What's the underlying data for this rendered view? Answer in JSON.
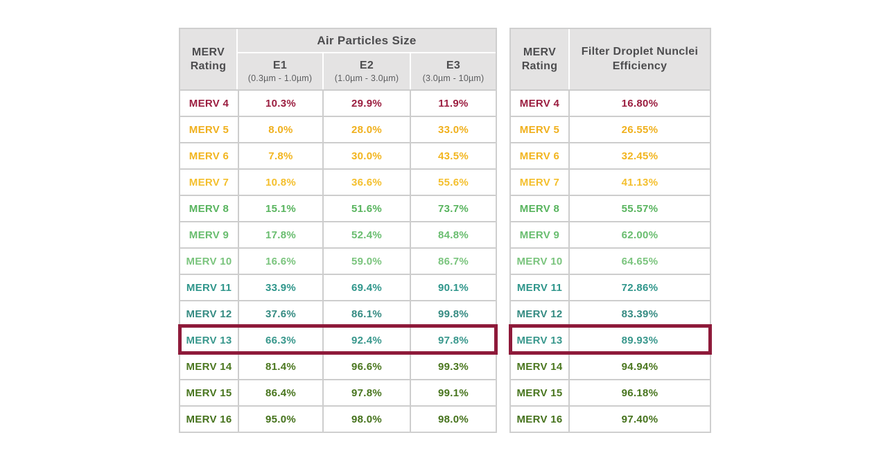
{
  "page": {
    "background": "#ffffff"
  },
  "colors": {
    "highlight_border": "#8e1a3a",
    "header_bg": "#e4e3e3",
    "header_text": "#4d4d4f",
    "grid_line": "#cdcdcd",
    "outer_border": "#cfcfcf"
  },
  "left_table": {
    "header": {
      "merv_label": "MERV Rating",
      "group_label": "Air Particles Size",
      "columns": [
        {
          "code": "E1",
          "range": "(0.3µm - 1.0µm)"
        },
        {
          "code": "E2",
          "range": "(1.0µm - 3.0µm)"
        },
        {
          "code": "E3",
          "range": "(3.0µm - 10µm)"
        }
      ]
    },
    "rows": [
      {
        "rating": "MERV 4",
        "values": [
          "10.3%",
          "29.9%",
          "11.9%"
        ],
        "color": "#9b1e40",
        "highlighted": false
      },
      {
        "rating": "MERV 5",
        "values": [
          "8.0%",
          "28.0%",
          "33.0%"
        ],
        "color": "#f0b01d",
        "highlighted": false
      },
      {
        "rating": "MERV 6",
        "values": [
          "7.8%",
          "30.0%",
          "43.5%"
        ],
        "color": "#f2b51f",
        "highlighted": false
      },
      {
        "rating": "MERV 7",
        "values": [
          "10.8%",
          "36.6%",
          "55.6%"
        ],
        "color": "#f4bf2d",
        "highlighted": false
      },
      {
        "rating": "MERV 8",
        "values": [
          "15.1%",
          "51.6%",
          "73.7%"
        ],
        "color": "#58b45e",
        "highlighted": false
      },
      {
        "rating": "MERV 9",
        "values": [
          "17.8%",
          "52.4%",
          "84.8%"
        ],
        "color": "#69bd6f",
        "highlighted": false
      },
      {
        "rating": "MERV 10",
        "values": [
          "16.6%",
          "59.0%",
          "86.7%"
        ],
        "color": "#7ac47d",
        "highlighted": false
      },
      {
        "rating": "MERV 11",
        "values": [
          "33.9%",
          "69.4%",
          "90.1%"
        ],
        "color": "#2f968b",
        "highlighted": false
      },
      {
        "rating": "MERV 12",
        "values": [
          "37.6%",
          "86.1%",
          "99.8%"
        ],
        "color": "#358b82",
        "highlighted": false
      },
      {
        "rating": "MERV 13",
        "values": [
          "66.3%",
          "92.4%",
          "97.8%"
        ],
        "color": "#38978c",
        "highlighted": true
      },
      {
        "rating": "MERV 14",
        "values": [
          "81.4%",
          "96.6%",
          "99.3%"
        ],
        "color": "#4b771f",
        "highlighted": false
      },
      {
        "rating": "MERV 15",
        "values": [
          "86.4%",
          "97.8%",
          "99.1%"
        ],
        "color": "#48751e",
        "highlighted": false
      },
      {
        "rating": "MERV 16",
        "values": [
          "95.0%",
          "98.0%",
          "98.0%"
        ],
        "color": "#45721c",
        "highlighted": false
      }
    ]
  },
  "right_table": {
    "header": {
      "merv_label": "MERV Rating",
      "efficiency_label": "Filter Droplet Nunclei Efficiency"
    },
    "rows": [
      {
        "rating": "MERV 4",
        "value": "16.80%",
        "color": "#9b1e40",
        "highlighted": false
      },
      {
        "rating": "MERV 5",
        "value": "26.55%",
        "color": "#f0b01d",
        "highlighted": false
      },
      {
        "rating": "MERV 6",
        "value": "32.45%",
        "color": "#f2b51f",
        "highlighted": false
      },
      {
        "rating": "MERV 7",
        "value": "41.13%",
        "color": "#f4bf2d",
        "highlighted": false
      },
      {
        "rating": "MERV 8",
        "value": "55.57%",
        "color": "#58b45e",
        "highlighted": false
      },
      {
        "rating": "MERV 9",
        "value": "62.00%",
        "color": "#69bd6f",
        "highlighted": false
      },
      {
        "rating": "MERV 10",
        "value": "64.65%",
        "color": "#7ac47d",
        "highlighted": false
      },
      {
        "rating": "MERV 11",
        "value": "72.86%",
        "color": "#2f968b",
        "highlighted": false
      },
      {
        "rating": "MERV 12",
        "value": "83.39%",
        "color": "#358b82",
        "highlighted": false
      },
      {
        "rating": "MERV 13",
        "value": "89.93%",
        "color": "#38978c",
        "highlighted": true
      },
      {
        "rating": "MERV 14",
        "value": "94.94%",
        "color": "#4b771f",
        "highlighted": false
      },
      {
        "rating": "MERV 15",
        "value": "96.18%",
        "color": "#48751e",
        "highlighted": false
      },
      {
        "rating": "MERV 16",
        "value": "97.40%",
        "color": "#45721c",
        "highlighted": false
      }
    ]
  },
  "chart_data": [
    {
      "type": "table",
      "title": "Air Particles Size",
      "columns": [
        "MERV Rating",
        "E1 (0.3µm - 1.0µm)",
        "E2 (1.0µm - 3.0µm)",
        "E3 (3.0µm - 10µm)"
      ],
      "rows": [
        [
          "MERV 4",
          10.3,
          29.9,
          11.9
        ],
        [
          "MERV 5",
          8.0,
          28.0,
          33.0
        ],
        [
          "MERV 6",
          7.8,
          30.0,
          43.5
        ],
        [
          "MERV 7",
          10.8,
          36.6,
          55.6
        ],
        [
          "MERV 8",
          15.1,
          51.6,
          73.7
        ],
        [
          "MERV 9",
          17.8,
          52.4,
          84.8
        ],
        [
          "MERV 10",
          16.6,
          59.0,
          86.7
        ],
        [
          "MERV 11",
          33.9,
          69.4,
          90.1
        ],
        [
          "MERV 12",
          37.6,
          86.1,
          99.8
        ],
        [
          "MERV 13",
          66.3,
          92.4,
          97.8
        ],
        [
          "MERV 14",
          81.4,
          96.6,
          99.3
        ],
        [
          "MERV 15",
          86.4,
          97.8,
          99.1
        ],
        [
          "MERV 16",
          95.0,
          98.0,
          98.0
        ]
      ],
      "units": "percent",
      "highlighted_row": "MERV 13"
    },
    {
      "type": "table",
      "title": "Filter Droplet Nunclei Efficiency",
      "columns": [
        "MERV Rating",
        "Filter Droplet Nunclei Efficiency"
      ],
      "rows": [
        [
          "MERV 4",
          16.8
        ],
        [
          "MERV 5",
          26.55
        ],
        [
          "MERV 6",
          32.45
        ],
        [
          "MERV 7",
          41.13
        ],
        [
          "MERV 8",
          55.57
        ],
        [
          "MERV 9",
          62.0
        ],
        [
          "MERV 10",
          64.65
        ],
        [
          "MERV 11",
          72.86
        ],
        [
          "MERV 12",
          83.39
        ],
        [
          "MERV 13",
          89.93
        ],
        [
          "MERV 14",
          94.94
        ],
        [
          "MERV 15",
          96.18
        ],
        [
          "MERV 16",
          97.4
        ]
      ],
      "units": "percent",
      "highlighted_row": "MERV 13"
    }
  ]
}
